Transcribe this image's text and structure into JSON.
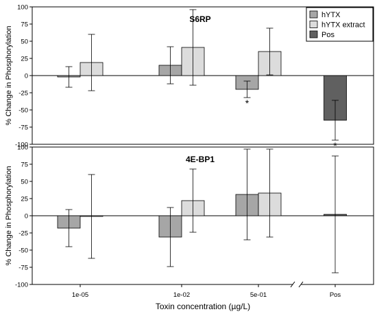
{
  "chart_data": {
    "type": "bar",
    "xlabel": "Toxin concentration (µg/L)",
    "categories": [
      "1e-05",
      "1e-02",
      "5e-01",
      "Pos"
    ],
    "legend": {
      "placement": "top-right",
      "entries": [
        {
          "name": "hYTX",
          "color": "#a6a6a6"
        },
        {
          "name": "hYTX extract",
          "color": "#dcdcdc"
        },
        {
          "name": "Pos",
          "color": "#606060"
        }
      ]
    },
    "panels": [
      {
        "title": "S6RP",
        "ylabel": "% Change in Phosphorylation",
        "ylim": [
          -100,
          100
        ],
        "yticks": [
          -100,
          -75,
          -50,
          -25,
          0,
          25,
          50,
          75,
          100
        ],
        "series": [
          {
            "name": "hYTX",
            "color": "#a6a6a6",
            "values": [
              -2,
              15,
              -20,
              null
            ],
            "err": [
              15,
              27,
              12,
              null
            ]
          },
          {
            "name": "hYTX extract",
            "color": "#dcdcdc",
            "values": [
              19,
              41,
              35,
              null
            ],
            "err": [
              41,
              55,
              34,
              null
            ]
          },
          {
            "name": "Pos",
            "color": "#606060",
            "values": [
              null,
              null,
              null,
              -65
            ],
            "err": [
              null,
              null,
              null,
              29
            ]
          }
        ],
        "annotations": [
          {
            "text": "*",
            "category": "5e-01",
            "series": "hYTX"
          },
          {
            "text": "*",
            "category": "Pos",
            "series": "Pos"
          }
        ]
      },
      {
        "title": "4E-BP1",
        "ylabel": "% Change in Phosphorylation",
        "ylim": [
          -100,
          100
        ],
        "yticks": [
          -100,
          -75,
          -50,
          -25,
          0,
          25,
          50,
          75,
          100
        ],
        "series": [
          {
            "name": "hYTX",
            "color": "#a6a6a6",
            "values": [
              -18,
              -31,
              31,
              null
            ],
            "err": [
              27,
              43,
              66,
              null
            ]
          },
          {
            "name": "hYTX extract",
            "color": "#dcdcdc",
            "values": [
              -1,
              22,
              33,
              null
            ],
            "err": [
              61,
              46,
              64,
              null
            ]
          },
          {
            "name": "Pos",
            "color": "#606060",
            "values": [
              null,
              null,
              null,
              2
            ],
            "err": [
              null,
              null,
              null,
              85
            ]
          }
        ],
        "annotations": []
      }
    ]
  }
}
